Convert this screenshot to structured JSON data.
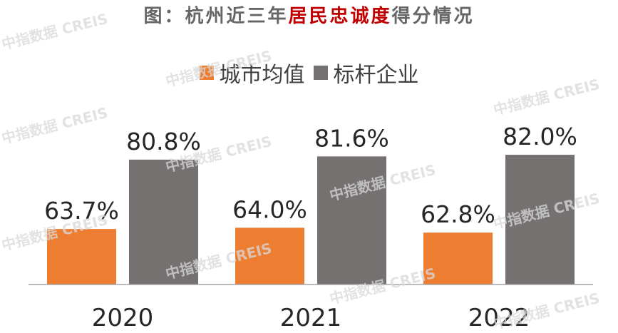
{
  "title": {
    "prefix": "图：杭州近三年",
    "highlight": "居民忠诚度",
    "suffix": "得分情况"
  },
  "watermark_text": "中指数据 CREIS",
  "colors": {
    "city_avg": "#ed7d31",
    "benchmark": "#767171",
    "title_highlight": "#c00000",
    "axis": "#a6a6a6"
  },
  "chart_data": {
    "type": "bar",
    "categories": [
      "2020",
      "2021",
      "2022"
    ],
    "series": [
      {
        "name": "城市均值",
        "values": [
          63.7,
          64.0,
          62.8
        ],
        "labels": [
          "63.7%",
          "64.0%",
          "62.8%"
        ]
      },
      {
        "name": "标杆企业",
        "values": [
          80.8,
          81.6,
          82.0
        ],
        "labels": [
          "80.8%",
          "81.6%",
          "82.0%"
        ]
      }
    ],
    "ylim": [
      50,
      85
    ],
    "grid": false,
    "legend": "top-center",
    "xlabel": "",
    "ylabel": ""
  }
}
